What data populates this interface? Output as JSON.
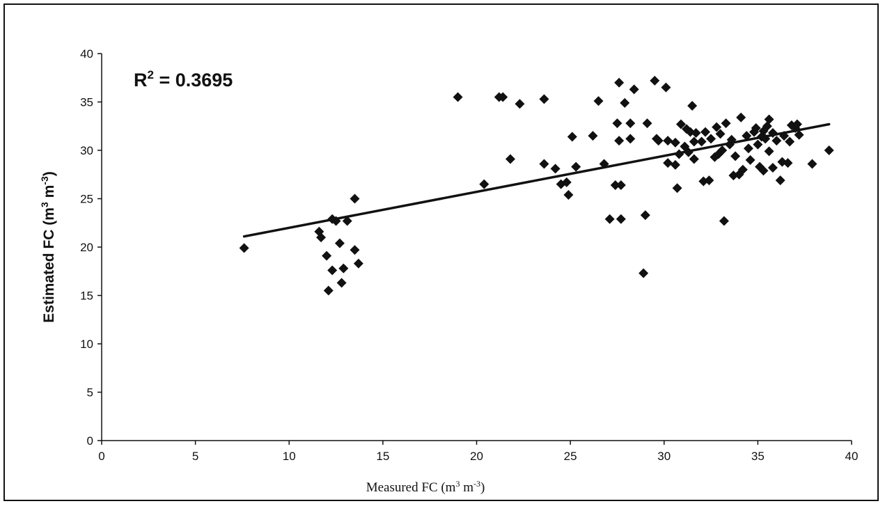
{
  "chart_data": {
    "type": "scatter",
    "title": "",
    "xlabel_main": "Measured FC (m",
    "xlabel_sup1": "3",
    "xlabel_mid": " m",
    "xlabel_sup2": "-3",
    "xlabel_end": ")",
    "ylabel_main": "Estimated FC (m",
    "ylabel_sup1": "3",
    "ylabel_mid": " m",
    "ylabel_sup2": "-3",
    "ylabel_end": ")",
    "annotation_main": "R",
    "annotation_sup": "2",
    "annotation_end": " = 0.3695",
    "xlim": [
      0,
      40
    ],
    "ylim": [
      0,
      40
    ],
    "xticks": [
      "0",
      "5",
      "10",
      "15",
      "20",
      "25",
      "30",
      "35",
      "40"
    ],
    "yticks": [
      "0",
      "5",
      "10",
      "15",
      "20",
      "25",
      "30",
      "35",
      "40"
    ],
    "grid": false,
    "legend": "none",
    "marker": "diamond",
    "marker_color": "#111111",
    "trendline": {
      "type": "linear",
      "x": [
        7.6,
        38.8
      ],
      "y": [
        21.1,
        32.7
      ]
    },
    "points": [
      [
        7.6,
        19.9
      ],
      [
        11.6,
        21.6
      ],
      [
        11.7,
        21.0
      ],
      [
        12.0,
        19.1
      ],
      [
        12.1,
        15.5
      ],
      [
        12.3,
        17.6
      ],
      [
        12.3,
        22.9
      ],
      [
        12.5,
        22.7
      ],
      [
        12.7,
        20.4
      ],
      [
        12.8,
        16.3
      ],
      [
        12.9,
        17.8
      ],
      [
        13.1,
        22.7
      ],
      [
        13.5,
        19.7
      ],
      [
        13.5,
        25.0
      ],
      [
        13.7,
        18.3
      ],
      [
        19.0,
        35.5
      ],
      [
        20.4,
        26.5
      ],
      [
        21.2,
        35.5
      ],
      [
        21.4,
        35.5
      ],
      [
        21.8,
        29.1
      ],
      [
        22.3,
        34.8
      ],
      [
        23.6,
        35.3
      ],
      [
        23.6,
        28.6
      ],
      [
        24.2,
        28.1
      ],
      [
        24.5,
        26.5
      ],
      [
        24.8,
        26.7
      ],
      [
        24.9,
        25.4
      ],
      [
        25.1,
        31.4
      ],
      [
        25.3,
        28.3
      ],
      [
        26.2,
        31.5
      ],
      [
        26.5,
        35.1
      ],
      [
        26.8,
        28.6
      ],
      [
        27.1,
        22.9
      ],
      [
        27.4,
        26.4
      ],
      [
        27.5,
        32.8
      ],
      [
        27.6,
        31.0
      ],
      [
        27.6,
        37.0
      ],
      [
        27.7,
        22.9
      ],
      [
        27.7,
        26.4
      ],
      [
        27.9,
        34.9
      ],
      [
        28.2,
        31.2
      ],
      [
        28.2,
        32.8
      ],
      [
        28.4,
        36.3
      ],
      [
        28.9,
        17.3
      ],
      [
        29.0,
        23.3
      ],
      [
        29.1,
        32.8
      ],
      [
        29.5,
        37.2
      ],
      [
        29.6,
        31.2
      ],
      [
        29.7,
        31.0
      ],
      [
        30.1,
        36.5
      ],
      [
        30.2,
        28.7
      ],
      [
        30.2,
        31.0
      ],
      [
        30.6,
        28.5
      ],
      [
        30.6,
        30.8
      ],
      [
        30.7,
        26.1
      ],
      [
        30.8,
        29.6
      ],
      [
        30.9,
        32.7
      ],
      [
        31.1,
        30.4
      ],
      [
        31.2,
        32.2
      ],
      [
        31.3,
        29.8
      ],
      [
        31.4,
        31.9
      ],
      [
        31.5,
        34.6
      ],
      [
        31.6,
        29.1
      ],
      [
        31.6,
        30.9
      ],
      [
        31.7,
        31.8
      ],
      [
        32.0,
        30.9
      ],
      [
        32.1,
        26.8
      ],
      [
        32.2,
        31.9
      ],
      [
        32.4,
        26.9
      ],
      [
        32.5,
        31.2
      ],
      [
        32.7,
        29.3
      ],
      [
        32.8,
        32.4
      ],
      [
        32.9,
        29.6
      ],
      [
        33.0,
        31.7
      ],
      [
        33.1,
        30.0
      ],
      [
        33.2,
        22.7
      ],
      [
        33.3,
        32.8
      ],
      [
        33.5,
        30.6
      ],
      [
        33.6,
        31.1
      ],
      [
        33.7,
        27.4
      ],
      [
        33.8,
        29.4
      ],
      [
        34.0,
        27.5
      ],
      [
        34.1,
        33.4
      ],
      [
        34.2,
        28.0
      ],
      [
        34.4,
        31.5
      ],
      [
        34.5,
        30.2
      ],
      [
        34.6,
        29.0
      ],
      [
        34.8,
        31.9
      ],
      [
        34.9,
        32.3
      ],
      [
        35.0,
        30.6
      ],
      [
        35.1,
        28.3
      ],
      [
        35.2,
        31.4
      ],
      [
        35.3,
        32.0
      ],
      [
        35.3,
        27.9
      ],
      [
        35.4,
        31.2
      ],
      [
        35.5,
        32.5
      ],
      [
        35.6,
        33.2
      ],
      [
        35.6,
        29.9
      ],
      [
        35.8,
        31.8
      ],
      [
        35.8,
        28.2
      ],
      [
        36.0,
        31.0
      ],
      [
        36.2,
        26.9
      ],
      [
        36.3,
        28.8
      ],
      [
        36.4,
        31.5
      ],
      [
        36.6,
        28.7
      ],
      [
        36.7,
        30.9
      ],
      [
        36.8,
        32.6
      ],
      [
        37.0,
        32.3
      ],
      [
        37.1,
        32.7
      ],
      [
        37.2,
        31.6
      ],
      [
        37.9,
        28.6
      ],
      [
        38.8,
        30.0
      ]
    ]
  }
}
